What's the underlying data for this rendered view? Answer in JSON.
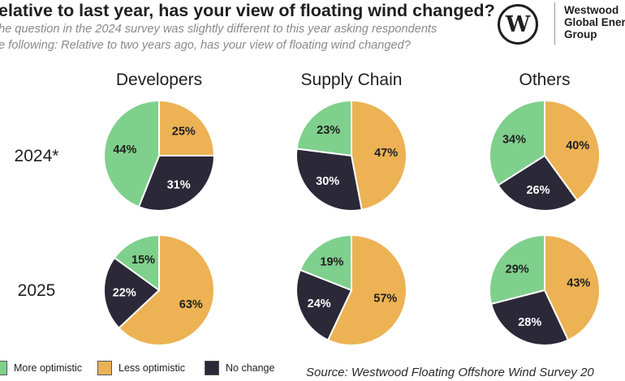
{
  "header": {
    "title": "elative to last year, has your view of floating wind changed?",
    "subtitle_line1": "he question in the 2024 survey was slightly different to this year asking respondents",
    "subtitle_line2": "e following: Relative to two years ago, has your view of floating wind changed?"
  },
  "logo": {
    "mark": "W",
    "line1": "Westwood",
    "line2": "Global Ener",
    "line3": "Group"
  },
  "colors": {
    "more_optimistic": "#7fd08c",
    "less_optimistic": "#ecb254",
    "no_change": "#2b2838",
    "label_text": "#1f1f1f",
    "divider": "#ffffff"
  },
  "chart_data": {
    "type": "pie",
    "title": "elative to last year, has your view of floating wind changed?",
    "groups": [
      "Developers",
      "Supply Chain",
      "Others"
    ],
    "years": [
      "2024*",
      "2025"
    ],
    "categories": [
      "More optimistic",
      "Less optimistic",
      "No change"
    ],
    "pies": [
      {
        "group": "Developers",
        "year": "2024*",
        "values": {
          "More optimistic": 44,
          "Less optimistic": 25,
          "No change": 31
        }
      },
      {
        "group": "Supply Chain",
        "year": "2024*",
        "values": {
          "More optimistic": 23,
          "Less optimistic": 47,
          "No change": 30
        }
      },
      {
        "group": "Others",
        "year": "2024*",
        "values": {
          "More optimistic": 34,
          "Less optimistic": 40,
          "No change": 26
        }
      },
      {
        "group": "Developers",
        "year": "2025",
        "values": {
          "More optimistic": 15,
          "Less optimistic": 63,
          "No change": 22
        }
      },
      {
        "group": "Supply Chain",
        "year": "2025",
        "values": {
          "More optimistic": 19,
          "Less optimistic": 57,
          "No change": 24
        }
      },
      {
        "group": "Others",
        "year": "2025",
        "values": {
          "More optimistic": 29,
          "Less optimistic": 43,
          "No change": 28
        }
      }
    ],
    "legend": [
      "More optimistic",
      "Less optimistic",
      "No change"
    ],
    "legend_position": "bottom-left",
    "source": "Source: Westwood Floating Offshore Wind Survey 20"
  }
}
